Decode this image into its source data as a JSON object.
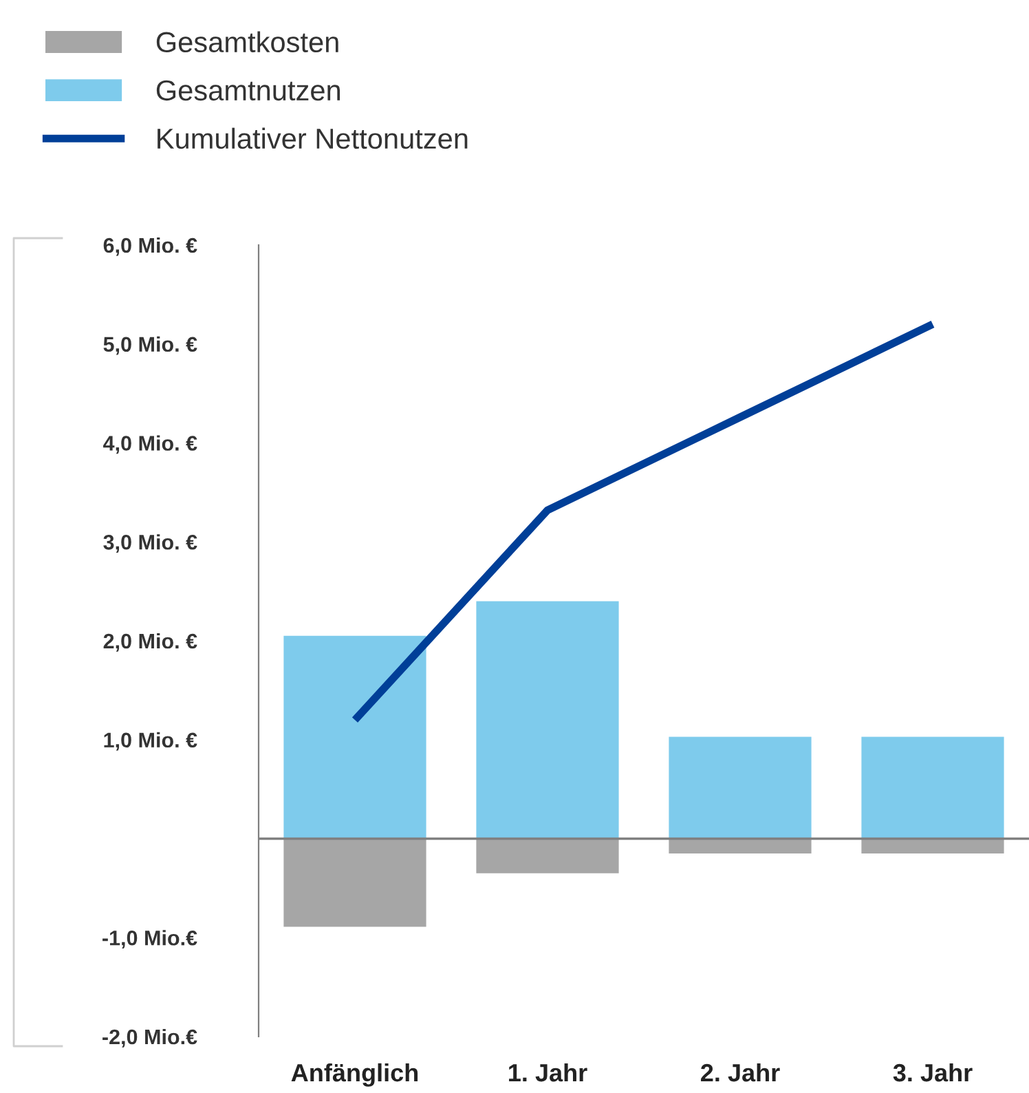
{
  "chart_data": {
    "type": "bar",
    "stacked": true,
    "categories": [
      "Anfänglich",
      "1. Jahr",
      "2. Jahr",
      "3. Jahr"
    ],
    "series": [
      {
        "name": "Gesamtkosten",
        "color": "#a6a6a6",
        "values": [
          -0.89,
          -0.35,
          -0.15,
          -0.15
        ]
      },
      {
        "name": "Gesamtnutzen",
        "color": "#7ecbec",
        "values": [
          2.05,
          2.4,
          1.03,
          1.03
        ]
      },
      {
        "name": "Kumulativer Nettonutzen",
        "type": "line",
        "color": "#003f98",
        "values": [
          1.2,
          3.32,
          4.26,
          5.2
        ]
      }
    ],
    "ylim": [
      -2,
      6
    ],
    "yticks": [
      {
        "value": -2,
        "label": "-2,0 Mio.€"
      },
      {
        "value": -1,
        "label": "-1,0 Mio.€"
      },
      {
        "value": 1,
        "label": "1,0 Mio. €"
      },
      {
        "value": 2,
        "label": "2,0 Mio. €"
      },
      {
        "value": 3,
        "label": "3,0 Mio. €"
      },
      {
        "value": 4,
        "label": "4,0 Mio. €"
      },
      {
        "value": 5,
        "label": "5,0 Mio. €"
      },
      {
        "value": 6,
        "label": "6,0 Mio. €"
      }
    ],
    "legend": "top left",
    "marker": "none",
    "line_style": "solid"
  }
}
